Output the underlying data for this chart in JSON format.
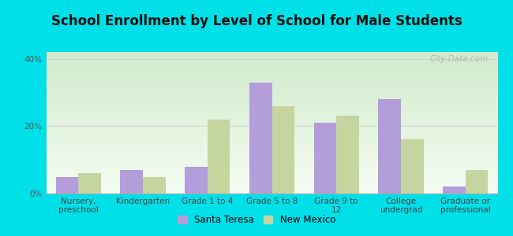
{
  "title": "School Enrollment by Level of School for Male Students",
  "categories": [
    "Nursery,\npreschool",
    "Kindergarten",
    "Grade 1 to 4",
    "Grade 5 to 8",
    "Grade 9 to\n12",
    "College\nundergrad",
    "Graduate or\nprofessional"
  ],
  "santa_teresa": [
    5,
    7,
    8,
    33,
    21,
    28,
    2
  ],
  "new_mexico": [
    6,
    5,
    22,
    26,
    23,
    16,
    7
  ],
  "color_st": "#b39ddb",
  "color_nm": "#c5d5a0",
  "background_outer": "#00e0e8",
  "ylim": [
    0,
    42
  ],
  "yticks": [
    0,
    20,
    40
  ],
  "ytick_labels": [
    "0%",
    "20%",
    "40%"
  ],
  "legend_labels": [
    "Santa Teresa",
    "New Mexico"
  ],
  "title_fontsize": 12,
  "tick_fontsize": 7.5,
  "legend_fontsize": 8.5,
  "bar_width": 0.35,
  "watermark_text": "City-Data.com"
}
